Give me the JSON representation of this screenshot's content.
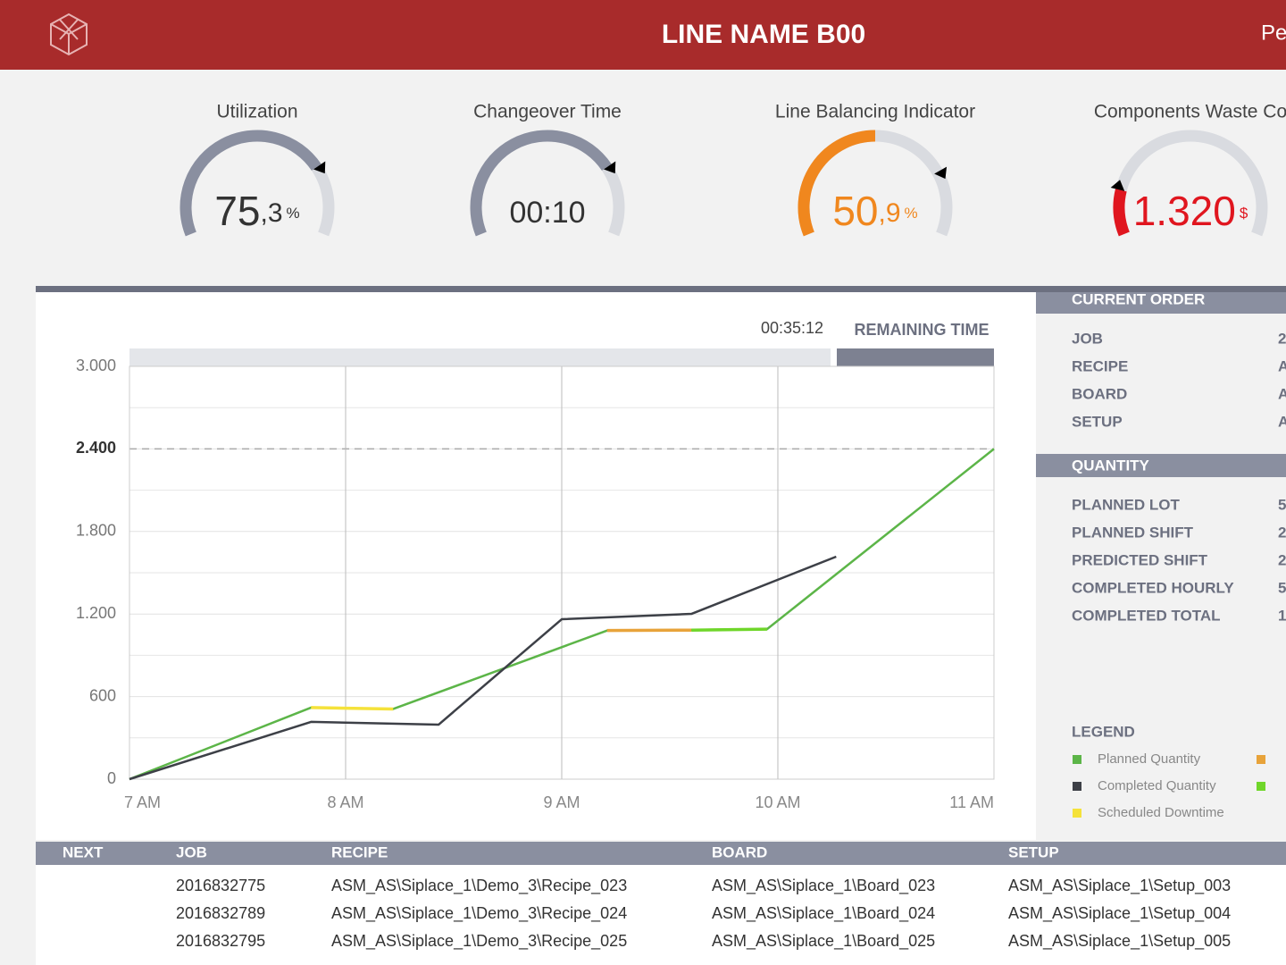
{
  "header": {
    "title": "LINE NAME B00",
    "right_text": "Pe"
  },
  "kpis": [
    {
      "title": "Utilization",
      "value": "75",
      "decimal": ",3",
      "unit": "%",
      "level": 75,
      "marker": 75,
      "color": "#8a8fa0",
      "text_color": "#333333"
    },
    {
      "title": "Changeover Time",
      "value": "00:10",
      "level": 75,
      "marker": 75,
      "color": "#8a8fa0",
      "text_color": "#333333"
    },
    {
      "title": "Line Balancing Indicator",
      "value": "50",
      "decimal": ",9",
      "unit": "%",
      "level": 50,
      "marker": 77,
      "color": "#f0871e",
      "text_color": "#f0871e"
    },
    {
      "title": "Components Waste Co",
      "value": "1.320",
      "unit": "$",
      "level": 16,
      "marker": 16,
      "color": "#e0161f",
      "text_color": "#e0161f"
    }
  ],
  "chart_data": {
    "type": "line",
    "remaining_time": "00:35:12",
    "remaining_label": "REMAINING TIME",
    "xlim": [
      7,
      11
    ],
    "xticks": [
      {
        "value": 7,
        "label": "7 AM"
      },
      {
        "value": 8,
        "label": "8 AM"
      },
      {
        "value": 9,
        "label": "9 AM"
      },
      {
        "value": 10,
        "label": "10 AM"
      },
      {
        "value": 11,
        "label": "11 AM"
      }
    ],
    "ylim": [
      0,
      3000
    ],
    "yticks": [
      0,
      600,
      {
        "value": 1200,
        "label": "1.200"
      },
      {
        "value": 1800,
        "label": "1.800"
      },
      {
        "value": 2400,
        "label": "2.400"
      },
      {
        "value": 3000,
        "label": "3.000"
      }
    ],
    "minor_gridlines": [
      300,
      900,
      1500,
      2100,
      2700
    ],
    "target_line": 2400,
    "grid": true,
    "series": [
      {
        "name": "Planned Quantity",
        "color": "#5cb548",
        "x": [
          7,
          7.84,
          8.22,
          9.21,
          9.95,
          11
        ],
        "values": [
          0,
          520,
          510,
          1080,
          1090,
          2400
        ]
      },
      {
        "name": "Completed Quantity",
        "color": "#3d4047",
        "x": [
          7,
          7.84,
          8.43,
          9,
          9.6,
          10.27
        ],
        "values": [
          0,
          416,
          396,
          1162,
          1201,
          1617
        ]
      },
      {
        "name": "Scheduled Downtime",
        "color": "#f5e23a",
        "x": [
          7.84,
          8.22
        ],
        "values": [
          520,
          510
        ]
      },
      {
        "color": "#e8a33a",
        "x": [
          9.21,
          9.6
        ],
        "values": [
          1080,
          1083
        ]
      },
      {
        "color": "#6fd62a",
        "x": [
          9.6,
          9.95
        ],
        "values": [
          1083,
          1090
        ]
      }
    ]
  },
  "current_order": {
    "title": "CURRENT ORDER",
    "rows": [
      {
        "label": "JOB",
        "value": "2"
      },
      {
        "label": "RECIPE",
        "value": "A"
      },
      {
        "label": "BOARD",
        "value": "A"
      },
      {
        "label": "SETUP",
        "value": "A"
      }
    ]
  },
  "quantity": {
    "title": "QUANTITY",
    "rows": [
      {
        "label": "PLANNED  LOT",
        "value": "5"
      },
      {
        "label": "PLANNED SHIFT",
        "value": "2"
      },
      {
        "label": "PREDICTED SHIFT",
        "value": "2"
      },
      {
        "label": "COMPLETED HOURLY",
        "value": "5"
      },
      {
        "label": "COMPLETED TOTAL",
        "value": "1"
      }
    ]
  },
  "legend": {
    "title": "LEGEND"
  },
  "table": {
    "headers": [
      "NEXT",
      "JOB",
      "RECIPE",
      "BOARD",
      "SETUP"
    ],
    "rows": [
      [
        "2016832775",
        "ASM_AS\\Siplace_1\\Demo_3\\Recipe_023",
        "ASM_AS\\Siplace_1\\Board_023",
        "ASM_AS\\Siplace_1\\Setup_003"
      ],
      [
        "2016832789",
        "ASM_AS\\Siplace_1\\Demo_3\\Recipe_024",
        "ASM_AS\\Siplace_1\\Board_024",
        "ASM_AS\\Siplace_1\\Setup_004"
      ],
      [
        "2016832795",
        "ASM_AS\\Siplace_1\\Demo_3\\Recipe_025",
        "ASM_AS\\Siplace_1\\Board_025",
        "ASM_AS\\Siplace_1\\Setup_005"
      ]
    ]
  }
}
